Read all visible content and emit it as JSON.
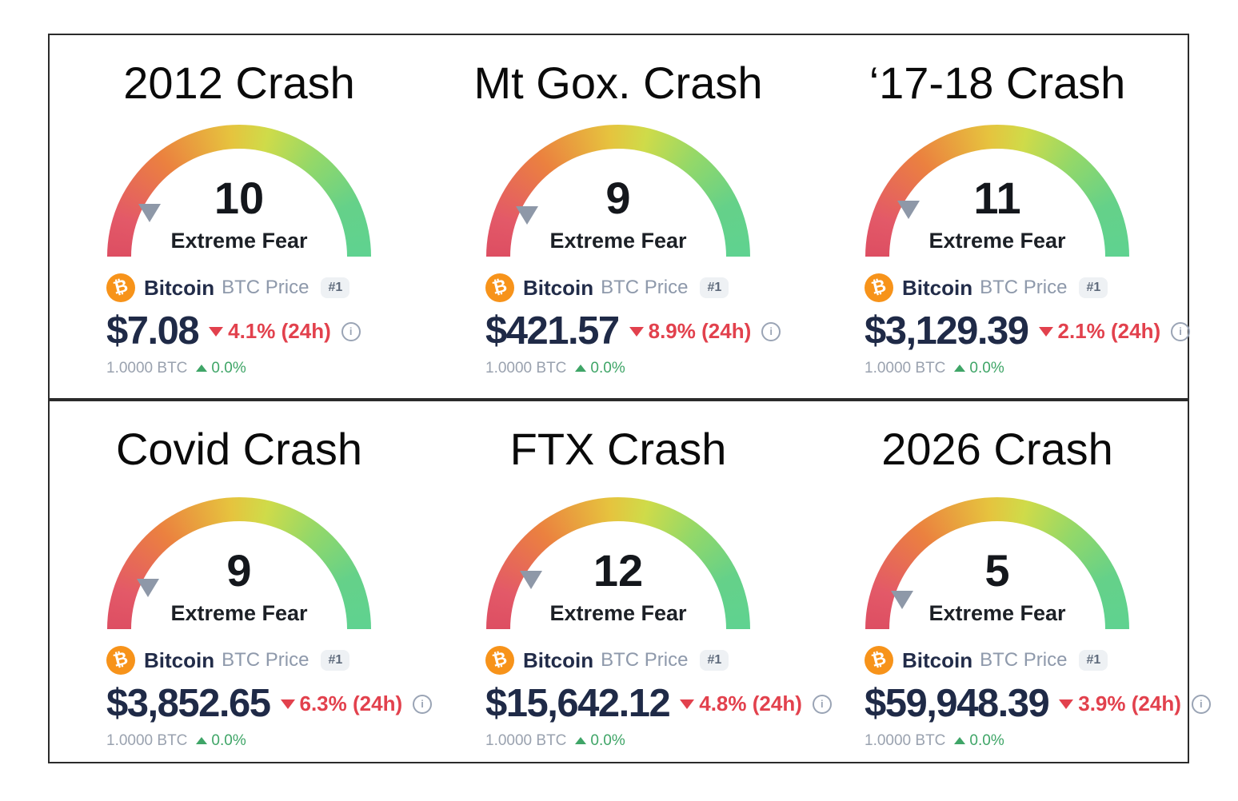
{
  "shared": {
    "coin_name": "Bitcoin",
    "coin_subtitle": "BTC Price",
    "rank_badge": "#1",
    "btc_symbol": "₿",
    "info_glyph": "i",
    "btc_ratio": "1.0000 BTC",
    "btc_ratio_change": "0.0%",
    "colors": {
      "bitcoin_orange": "#f7931a",
      "price_navy": "#1f2a47",
      "change_red": "#e2414d",
      "ratio_green": "#3fa567",
      "pointer_gray": "#8e98a8",
      "gauge_red_end": "#dd4e62",
      "gauge_orange": "#eb813f",
      "gauge_yellow": "#e6c33e",
      "gauge_green_end": "#5fd290",
      "badge_bg": "#eef1f4",
      "border_black": "#2b2b2b"
    }
  },
  "chart_data": [
    {
      "type": "gauge",
      "title": "2012 Crash",
      "value": 10,
      "range": [
        0,
        100
      ],
      "sentiment": "Extreme Fear",
      "price": "$7.08",
      "change_24h": "4.1% (24h)",
      "change_direction": "down"
    },
    {
      "type": "gauge",
      "title": "Mt Gox. Crash",
      "value": 9,
      "range": [
        0,
        100
      ],
      "sentiment": "Extreme Fear",
      "price": "$421.57",
      "change_24h": "8.9% (24h)",
      "change_direction": "down"
    },
    {
      "type": "gauge",
      "title": "‘17-18 Crash",
      "value": 11,
      "range": [
        0,
        100
      ],
      "sentiment": "Extreme Fear",
      "price": "$3,129.39",
      "change_24h": "2.1% (24h)",
      "change_direction": "down"
    },
    {
      "type": "gauge",
      "title": "Covid Crash",
      "value": 9,
      "range": [
        0,
        100
      ],
      "sentiment": "Extreme Fear",
      "price": "$3,852.65",
      "change_24h": "6.3% (24h)",
      "change_direction": "down"
    },
    {
      "type": "gauge",
      "title": "FTX Crash",
      "value": 12,
      "range": [
        0,
        100
      ],
      "sentiment": "Extreme Fear",
      "price": "$15,642.12",
      "change_24h": "4.8% (24h)",
      "change_direction": "down"
    },
    {
      "type": "gauge",
      "title": "2026 Crash",
      "value": 5,
      "range": [
        0,
        100
      ],
      "sentiment": "Extreme Fear",
      "price": "$59,948.39",
      "change_24h": "3.9% (24h)",
      "change_direction": "down"
    }
  ]
}
